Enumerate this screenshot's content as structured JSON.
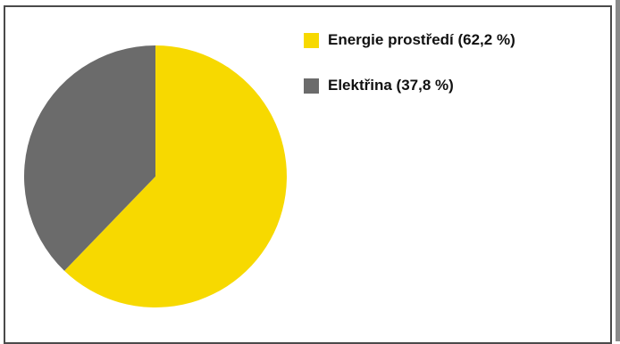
{
  "chart_data": {
    "type": "pie",
    "title": "",
    "series": [
      {
        "values": [
          62.2,
          37.8
        ]
      }
    ],
    "categories": [
      "Energie prostředí",
      "Elektřina"
    ],
    "colors": [
      "#f7d900",
      "#6b6b6b"
    ],
    "legend": {
      "placement": "top-right",
      "labels": [
        "Energie prostředí (62,2 %)",
        "Elektřina (37,8 %)"
      ]
    },
    "start_angle": "12 o'clock",
    "direction": "clockwise"
  }
}
